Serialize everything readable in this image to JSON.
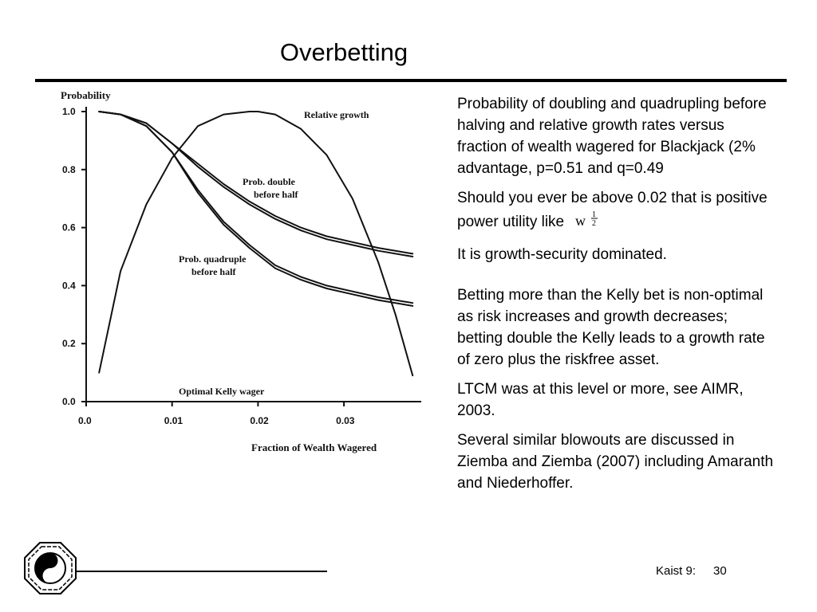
{
  "slide": {
    "title": "Overbetting",
    "paragraphs": [
      "Probability of doubling and quadrupling before halving and relative growth rates versus fraction of wealth wagered for Blackjack (2% advantage, p=0.51 and q=0.49",
      "Should you ever be above 0.02 that is positive power utility like",
      "It is growth-security dominated.",
      "Betting more than the Kelly bet is non-optimal as risk increases and growth decreases; betting double the Kelly leads to a growth rate of zero plus the riskfree asset.",
      "LTCM was at this level or more, see AIMR, 2003.",
      "Several similar blowouts are discussed in Ziemba and Ziemba (2007) including Amaranth and Niederhoffer."
    ],
    "formula": {
      "base": "w",
      "exp_num": "1",
      "exp_den": "2"
    },
    "footer": {
      "label": "Kaist 9:",
      "page": "30"
    }
  },
  "chart_data": {
    "type": "line",
    "ylabel": "Probability",
    "xlabel": "Fraction of Wealth Wagered",
    "xlim": [
      0.0,
      0.039
    ],
    "ylim": [
      0.0,
      1.0
    ],
    "x_ticks": [
      "0.0",
      "0.01",
      "0.02",
      "0.03"
    ],
    "y_ticks": [
      "0.0",
      "0.2",
      "0.4",
      "0.6",
      "0.8",
      "1.0"
    ],
    "annotations": {
      "growth": "Relative growth",
      "double_l1": "Prob. double",
      "double_l2": "before half",
      "quad_l1": "Prob. quadruple",
      "quad_l2": "before half",
      "kelly": "Optimal Kelly wager"
    },
    "series": [
      {
        "key": "growth",
        "x": [
          0.0015,
          0.004,
          0.007,
          0.01,
          0.013,
          0.016,
          0.019,
          0.02,
          0.022,
          0.025,
          0.028,
          0.031,
          0.034,
          0.036,
          0.038
        ],
        "y": [
          0.1,
          0.45,
          0.68,
          0.84,
          0.95,
          0.99,
          1.0,
          1.0,
          0.99,
          0.94,
          0.85,
          0.7,
          0.48,
          0.3,
          0.09
        ]
      },
      {
        "key": "double_a",
        "x": [
          0.0015,
          0.004,
          0.007,
          0.01,
          0.013,
          0.016,
          0.019,
          0.022,
          0.025,
          0.028,
          0.031,
          0.034,
          0.038
        ],
        "y": [
          1.0,
          0.99,
          0.96,
          0.89,
          0.82,
          0.75,
          0.69,
          0.64,
          0.6,
          0.57,
          0.55,
          0.53,
          0.51
        ]
      },
      {
        "key": "double_b",
        "x": [
          0.0015,
          0.004,
          0.007,
          0.01,
          0.013,
          0.016,
          0.019,
          0.022,
          0.025,
          0.028,
          0.031,
          0.034,
          0.038
        ],
        "y": [
          1.0,
          0.99,
          0.96,
          0.89,
          0.81,
          0.74,
          0.68,
          0.63,
          0.59,
          0.56,
          0.54,
          0.52,
          0.5
        ]
      },
      {
        "key": "quad_a",
        "x": [
          0.0015,
          0.004,
          0.007,
          0.01,
          0.013,
          0.016,
          0.019,
          0.022,
          0.025,
          0.028,
          0.031,
          0.034,
          0.038
        ],
        "y": [
          1.0,
          0.99,
          0.95,
          0.86,
          0.73,
          0.62,
          0.54,
          0.47,
          0.43,
          0.4,
          0.38,
          0.36,
          0.34
        ]
      },
      {
        "key": "quad_b",
        "x": [
          0.0015,
          0.004,
          0.007,
          0.01,
          0.013,
          0.016,
          0.019,
          0.022,
          0.025,
          0.028,
          0.031,
          0.034,
          0.038
        ],
        "y": [
          1.0,
          0.99,
          0.95,
          0.86,
          0.72,
          0.61,
          0.53,
          0.46,
          0.42,
          0.39,
          0.37,
          0.35,
          0.33
        ]
      }
    ]
  }
}
